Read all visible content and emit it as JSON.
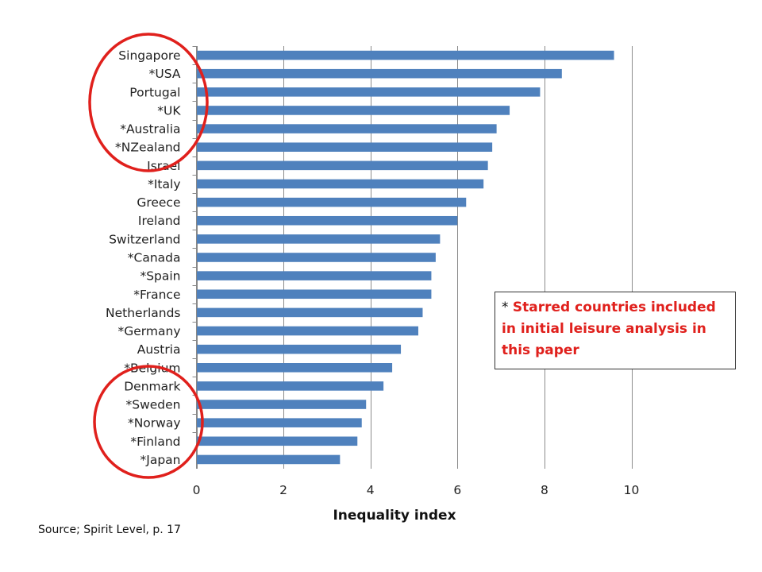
{
  "chart_data": {
    "type": "bar",
    "orientation": "horizontal",
    "categories": [
      "Singapore",
      "*USA",
      "Portugal",
      "*UK",
      "*Australia",
      "*NZealand",
      "Israel",
      "*Italy",
      "Greece",
      "Ireland",
      "Switzerland",
      "*Canada",
      "*Spain",
      "*France",
      "Netherlands",
      "*Germany",
      "Austria",
      "*Belgium",
      "Denmark",
      "*Sweden",
      "*Norway",
      "*Finland",
      "*Japan"
    ],
    "values": [
      9.6,
      8.4,
      7.9,
      7.2,
      6.9,
      6.8,
      6.7,
      6.6,
      6.2,
      6.0,
      5.6,
      5.5,
      5.4,
      5.4,
      5.2,
      5.1,
      4.7,
      4.5,
      4.3,
      3.9,
      3.8,
      3.7,
      3.3
    ],
    "xlabel": "Inequality index",
    "xlim": [
      0,
      10
    ],
    "xticks": [
      "0",
      "2",
      "4",
      "6",
      "8",
      "10"
    ],
    "bar_color": "#4f81bd",
    "grid": "vertical"
  },
  "annotation": {
    "star": "*",
    "text_lines": [
      "Starred countries included",
      "in initial leisure analysis in",
      "this paper"
    ],
    "text_color": "#e0201c"
  },
  "highlight_color": "#e0201c",
  "source": "Source; Spirit Level, p. 17"
}
